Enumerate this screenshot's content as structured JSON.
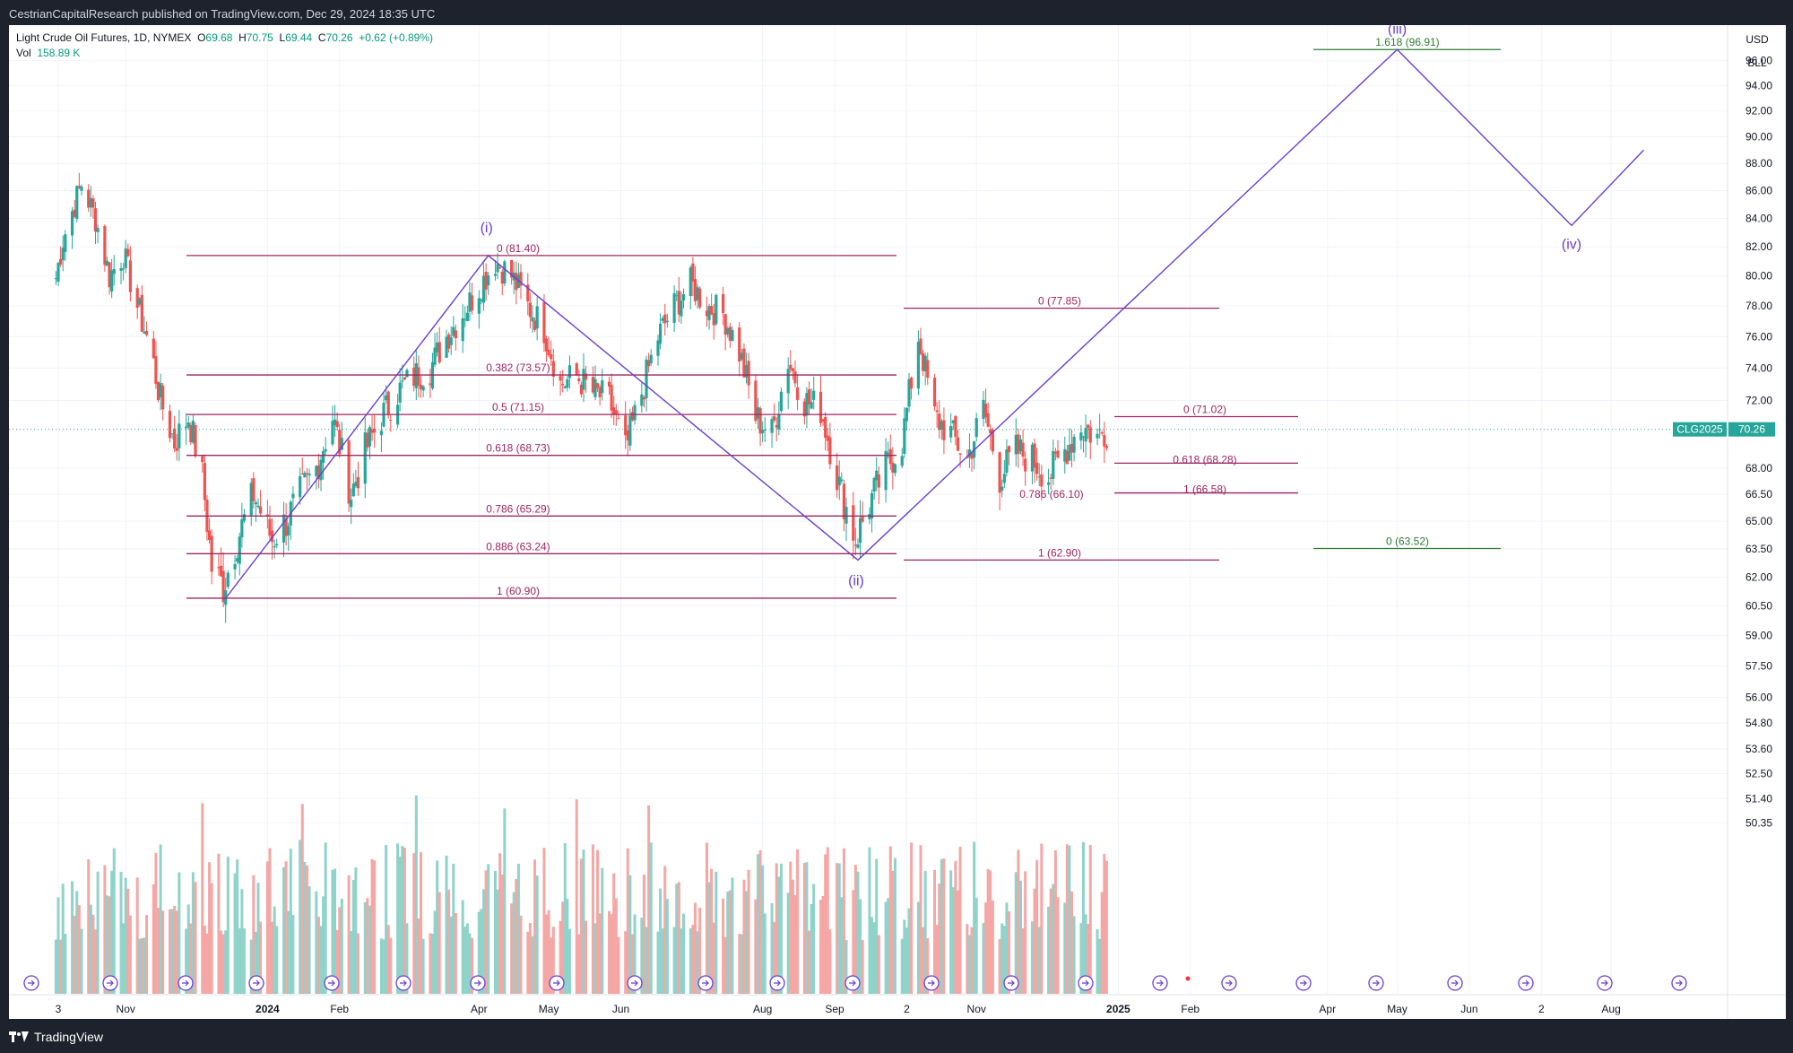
{
  "header": {
    "published": "CestrianCapitalResearch published on TradingView.com, Dec 29, 2024 18:35 UTC"
  },
  "legend": {
    "symbol": "Light Crude Oil Futures, 1D, NYMEX",
    "o_label": "O",
    "o": "69.68",
    "h_label": "H",
    "h": "70.75",
    "l_label": "L",
    "l": "69.44",
    "c_label": "C",
    "c": "70.26",
    "change": "+0.62 (+0.89%)",
    "vol_label": "Vol",
    "vol": "158.89 K"
  },
  "axis": {
    "currency": "USD",
    "unit": "BLL",
    "price_ticks": [
      "100.00",
      "96.00",
      "94.00",
      "92.00",
      "90.00",
      "88.00",
      "86.00",
      "84.00",
      "82.00",
      "80.00",
      "78.00",
      "76.00",
      "74.00",
      "72.00",
      "68.00",
      "66.50",
      "65.00",
      "63.50",
      "62.00",
      "60.50",
      "59.00",
      "57.50",
      "56.00",
      "54.80",
      "53.60",
      "52.50",
      "51.40",
      "50.35"
    ],
    "time_ticks": [
      "3",
      "Nov",
      "2024",
      "Feb",
      "Apr",
      "May",
      "Jun",
      "Aug",
      "Sep",
      "2",
      "Nov",
      "2025",
      "Feb",
      "Apr",
      "May",
      "Jun",
      "2",
      "Aug"
    ],
    "ticker_badge": "CLG2025",
    "last_price": "70.26"
  },
  "footer": {
    "brand": "TradingView"
  },
  "colors": {
    "up": "#26a69a",
    "down": "#ef5350",
    "vol_up": "#8fd3ca",
    "vol_down": "#f5a7a5",
    "fib": "#9c2762",
    "wave": "#6a3fd0",
    "target": "#2e7d32"
  },
  "chart_data": {
    "type": "candlestick",
    "title": "Light Crude Oil Futures, 1D, NYMEX",
    "ylim": [
      50.35,
      101.5
    ],
    "scale": "log",
    "close_series": [
      {
        "date": "2023-10-01",
        "close": 79
      },
      {
        "date": "2023-10-05",
        "close": 82.5
      },
      {
        "date": "2023-10-09",
        "close": 84.5
      },
      {
        "date": "2023-10-13",
        "close": 86.5
      },
      {
        "date": "2023-10-19",
        "close": 84
      },
      {
        "date": "2023-10-25",
        "close": 80
      },
      {
        "date": "2023-10-31",
        "close": 81.5
      },
      {
        "date": "2023-11-06",
        "close": 78
      },
      {
        "date": "2023-11-12",
        "close": 75
      },
      {
        "date": "2023-11-16",
        "close": 72
      },
      {
        "date": "2023-11-22",
        "close": 69.5
      },
      {
        "date": "2023-11-28",
        "close": 71
      },
      {
        "date": "2023-12-04",
        "close": 67.5
      },
      {
        "date": "2023-12-08",
        "close": 62.5
      },
      {
        "date": "2023-12-13",
        "close": 61.5
      },
      {
        "date": "2023-12-19",
        "close": 64
      },
      {
        "date": "2023-12-26",
        "close": 66.5
      },
      {
        "date": "2024-01-03",
        "close": 64
      },
      {
        "date": "2024-01-09",
        "close": 65
      },
      {
        "date": "2024-01-15",
        "close": 66.5
      },
      {
        "date": "2024-01-22",
        "close": 68
      },
      {
        "date": "2024-01-29",
        "close": 71
      },
      {
        "date": "2024-02-06",
        "close": 66.5
      },
      {
        "date": "2024-02-12",
        "close": 69
      },
      {
        "date": "2024-02-19",
        "close": 71
      },
      {
        "date": "2024-02-26",
        "close": 72.5
      },
      {
        "date": "2024-03-04",
        "close": 73.5
      },
      {
        "date": "2024-03-11",
        "close": 74
      },
      {
        "date": "2024-03-18",
        "close": 76
      },
      {
        "date": "2024-03-25",
        "close": 77.5
      },
      {
        "date": "2024-04-02",
        "close": 79.5
      },
      {
        "date": "2024-04-08",
        "close": 81
      },
      {
        "date": "2024-04-15",
        "close": 80
      },
      {
        "date": "2024-04-22",
        "close": 78
      },
      {
        "date": "2024-04-29",
        "close": 76.5
      },
      {
        "date": "2024-05-06",
        "close": 73
      },
      {
        "date": "2024-05-13",
        "close": 73.5
      },
      {
        "date": "2024-05-20",
        "close": 72.5
      },
      {
        "date": "2024-05-27",
        "close": 72
      },
      {
        "date": "2024-06-03",
        "close": 69
      },
      {
        "date": "2024-06-10",
        "close": 72.5
      },
      {
        "date": "2024-06-17",
        "close": 76
      },
      {
        "date": "2024-06-24",
        "close": 78
      },
      {
        "date": "2024-07-01",
        "close": 79.5
      },
      {
        "date": "2024-07-08",
        "close": 78
      },
      {
        "date": "2024-07-15",
        "close": 77.5
      },
      {
        "date": "2024-07-22",
        "close": 75
      },
      {
        "date": "2024-07-29",
        "close": 71
      },
      {
        "date": "2024-08-05",
        "close": 70
      },
      {
        "date": "2024-08-12",
        "close": 74.5
      },
      {
        "date": "2024-08-19",
        "close": 72
      },
      {
        "date": "2024-08-26",
        "close": 71.5
      },
      {
        "date": "2024-09-03",
        "close": 67
      },
      {
        "date": "2024-09-10",
        "close": 64
      },
      {
        "date": "2024-09-16",
        "close": 66
      },
      {
        "date": "2024-09-23",
        "close": 68
      },
      {
        "date": "2024-09-30",
        "close": 69.5
      },
      {
        "date": "2024-10-07",
        "close": 76
      },
      {
        "date": "2024-10-14",
        "close": 71
      },
      {
        "date": "2024-10-21",
        "close": 70
      },
      {
        "date": "2024-10-28",
        "close": 68.5
      },
      {
        "date": "2024-11-04",
        "close": 71.5
      },
      {
        "date": "2024-11-11",
        "close": 67.5
      },
      {
        "date": "2024-11-18",
        "close": 69
      },
      {
        "date": "2024-11-25",
        "close": 68.5
      },
      {
        "date": "2024-12-02",
        "close": 67.5
      },
      {
        "date": "2024-12-09",
        "close": 69
      },
      {
        "date": "2024-12-16",
        "close": 70.5
      },
      {
        "date": "2024-12-23",
        "close": 69.8
      },
      {
        "date": "2024-12-27",
        "close": 70.26
      }
    ],
    "fib_levels": [
      {
        "price": 81.4,
        "label": "0 (81.40)"
      },
      {
        "price": 73.57,
        "label": "0.382 (73.57)"
      },
      {
        "price": 71.15,
        "label": "0.5 (71.15)"
      },
      {
        "price": 68.73,
        "label": "0.618 (68.73)"
      },
      {
        "price": 65.29,
        "label": "0.786 (65.29)"
      },
      {
        "price": 63.24,
        "label": "0.886 (63.24)"
      },
      {
        "price": 60.9,
        "label": "1 (60.90)"
      },
      {
        "price": 77.85,
        "label": "0 (77.85)"
      },
      {
        "price": 62.9,
        "label": "1 (62.90)"
      },
      {
        "price": 71.02,
        "label": "0 (71.02)"
      },
      {
        "price": 68.28,
        "label": "0.618 (68.28)"
      },
      {
        "price": 66.58,
        "label": "1 (66.58)"
      },
      {
        "price": 66.1,
        "label": "0.786 (66.10)"
      },
      {
        "price": 96.91,
        "label": "1.618 (96.91)"
      },
      {
        "price": 63.52,
        "label": "0 (63.52)"
      }
    ],
    "waves": [
      {
        "label": "(i)",
        "date": "2024-04-05",
        "price": 81.4
      },
      {
        "label": "(ii)",
        "date": "2024-09-11",
        "price": 62.9
      },
      {
        "label": "(iii)",
        "date": "2025-05-01",
        "price": 96.91
      },
      {
        "label": "(iv)",
        "date": "2025-07-15",
        "price": 83.5
      }
    ]
  }
}
